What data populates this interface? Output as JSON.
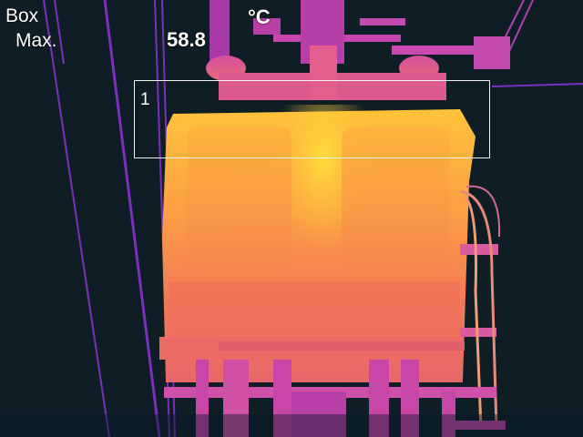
{
  "measurement": {
    "tool_label": "Box",
    "stat_label": "Max.",
    "unit": "°C",
    "max_value": "58.8"
  },
  "roi": {
    "label": "1"
  },
  "colors": {
    "background": "#0e1e24",
    "cold_wire": "#7a2fbf",
    "mid": "#d04aa8",
    "warm": "#f07a4a",
    "hot": "#ffb43a",
    "hottest": "#ffd233"
  }
}
